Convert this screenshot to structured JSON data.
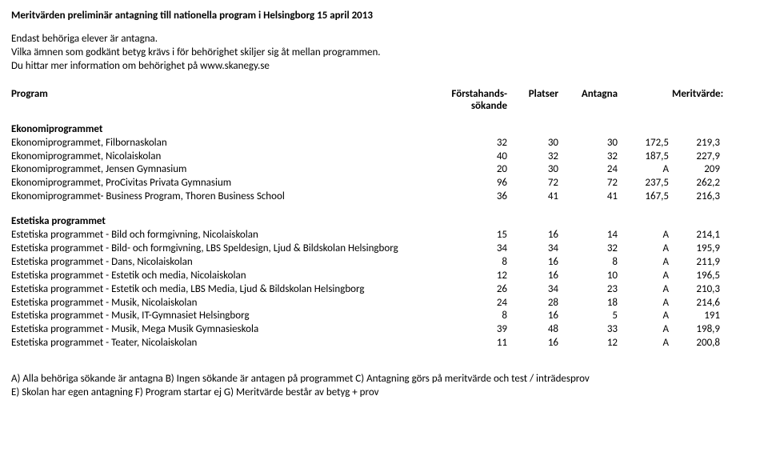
{
  "title": "Meritvärden preliminär antagning till nationella program i Helsingborg 15 april 2013",
  "intro": {
    "line1": "Endast behöriga elever är antagna.",
    "line2": "Vilka ämnen som godkänt betyg krävs i för behörighet skiljer sig åt mellan programmen.",
    "line3": "Du hittar mer information om behörighet på www.skanegy.se"
  },
  "headers": {
    "program": "Program",
    "forstahands": "Förstahands-",
    "sokande": "sökande",
    "platser": "Platser",
    "antagna": "Antagna",
    "meritvarde": "Meritvärde:"
  },
  "sections": [
    {
      "title": "Ekonomiprogrammet",
      "rows": [
        {
          "name": "Ekonomiprogrammet, Filbornaskolan",
          "a": "32",
          "b": "30",
          "c": "30",
          "d": "172,5",
          "e": "219,3"
        },
        {
          "name": "Ekonomiprogrammet, Nicolaiskolan",
          "a": "40",
          "b": "32",
          "c": "32",
          "d": "187,5",
          "e": "227,9"
        },
        {
          "name": "Ekonomiprogrammet, Jensen Gymnasium",
          "a": "20",
          "b": "30",
          "c": "24",
          "d": "A",
          "e": "209"
        },
        {
          "name": "Ekonomiprogrammet, ProCivitas Privata Gymnasium",
          "a": "96",
          "b": "72",
          "c": "72",
          "d": "237,5",
          "e": "262,2"
        },
        {
          "name": "Ekonomiprogrammet- Business Program, Thoren Business School",
          "a": "36",
          "b": "41",
          "c": "41",
          "d": "167,5",
          "e": "216,3"
        }
      ]
    },
    {
      "title": "Estetiska programmet",
      "rows": [
        {
          "name": "Estetiska programmet - Bild och formgivning, Nicolaiskolan",
          "a": "15",
          "b": "16",
          "c": "14",
          "d": "A",
          "e": "214,1"
        },
        {
          "name": "Estetiska programmet - Bild- och formgivning, LBS Speldesign, Ljud & Bildskolan Helsingborg",
          "a": "34",
          "b": "34",
          "c": "32",
          "d": "A",
          "e": "195,9"
        },
        {
          "name": "Estetiska programmet - Dans, Nicolaiskolan",
          "a": "8",
          "b": "16",
          "c": "8",
          "d": "A",
          "e": "211,9"
        },
        {
          "name": "Estetiska programmet - Estetik och media, Nicolaiskolan",
          "a": "12",
          "b": "16",
          "c": "10",
          "d": "A",
          "e": "196,5"
        },
        {
          "name": "Estetiska programmet - Estetik och media, LBS Media, Ljud & Bildskolan Helsingborg",
          "a": "26",
          "b": "34",
          "c": "23",
          "d": "A",
          "e": "210,3"
        },
        {
          "name": "Estetiska programmet - Musik, Nicolaiskolan",
          "a": "24",
          "b": "28",
          "c": "18",
          "d": "A",
          "e": "214,6"
        },
        {
          "name": "Estetiska programmet - Musik, IT-Gymnasiet Helsingborg",
          "a": "8",
          "b": "16",
          "c": "5",
          "d": "A",
          "e": "191"
        },
        {
          "name": "Estetiska programmet - Musik, Mega Musik Gymnasieskola",
          "a": "39",
          "b": "48",
          "c": "33",
          "d": "A",
          "e": "198,9"
        },
        {
          "name": "Estetiska programmet - Teater, Nicolaiskolan",
          "a": "11",
          "b": "16",
          "c": "12",
          "d": "A",
          "e": "200,8"
        }
      ]
    }
  ],
  "footer": {
    "line1": "A) Alla behöriga sökande är antagna B) Ingen sökande är antagen på programmet C) Antagning görs på meritvärde och test / inträdesprov",
    "line2": "E) Skolan har egen antagning F) Program startar ej G) Meritvärde består av betyg + prov"
  }
}
